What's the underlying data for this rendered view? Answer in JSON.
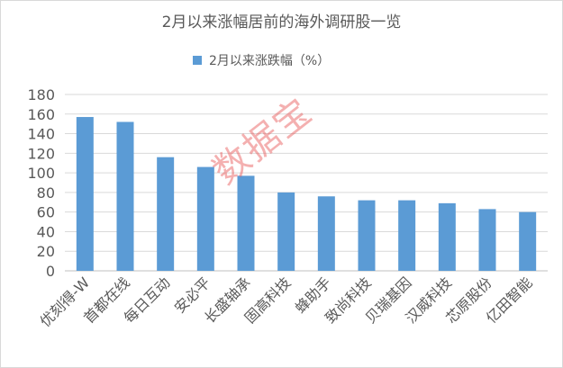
{
  "watermark": "数据宝",
  "chart_data": {
    "type": "bar",
    "title": "2月以来涨幅居前的海外调研股一览",
    "legend_position": "top",
    "categories": [
      "优刻得-W",
      "首都在线",
      "每日互动",
      "安必平",
      "长盛轴承",
      "固高科技",
      "蜂助手",
      "致尚科技",
      "贝瑞基因",
      "汉威科技",
      "芯原股份",
      "亿田智能"
    ],
    "series": [
      {
        "name": "2月以来涨跌幅（%）",
        "color": "#5b9bd5",
        "values": [
          157,
          152,
          116,
          106,
          97,
          80,
          76,
          72,
          72,
          69,
          63,
          60
        ]
      }
    ],
    "ylim": [
      0,
      180
    ],
    "yticks": [
      0,
      20,
      40,
      60,
      80,
      100,
      120,
      140,
      160,
      180
    ],
    "grid": true,
    "xlabel": "",
    "ylabel": ""
  }
}
